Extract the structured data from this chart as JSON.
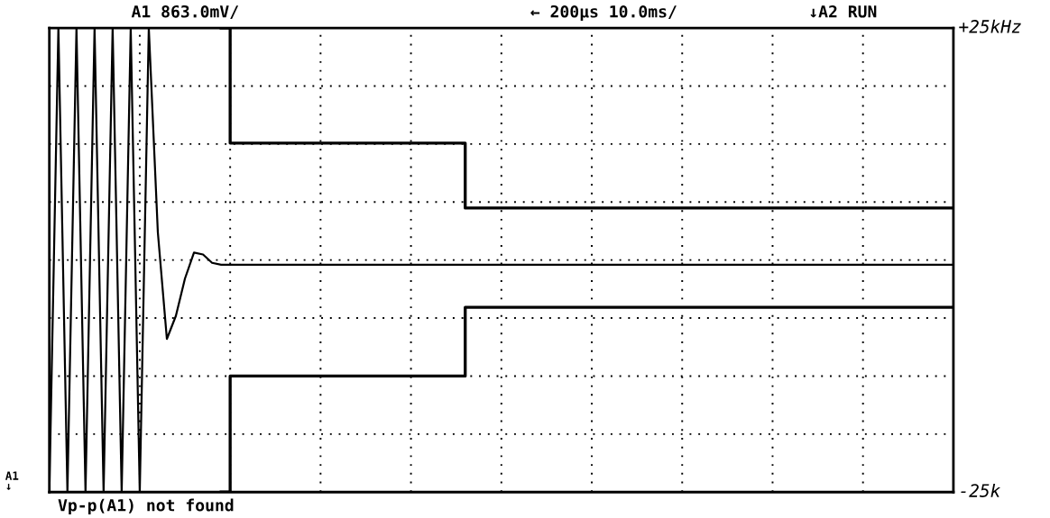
{
  "chart_data": {
    "type": "line",
    "categories": [
      null,
      null,
      null,
      null,
      null,
      null,
      null,
      null,
      null,
      null,
      null,
      null,
      null,
      null,
      null,
      null,
      null,
      null,
      null,
      null,
      null,
      null,
      null,
      null,
      null,
      null,
      null,
      null,
      null,
      null,
      null,
      null,
      null,
      null,
      null,
      null,
      null,
      null,
      null,
      null,
      null,
      null,
      null,
      null,
      null,
      null,
      null,
      null,
      null,
      null,
      null,
      null,
      null,
      null,
      null,
      null,
      null,
      null,
      null,
      null,
      null,
      null,
      null,
      null,
      null,
      null,
      null,
      null,
      null,
      null,
      null,
      null,
      null,
      null,
      null,
      null,
      null,
      null,
      null,
      null,
      null,
      null,
      null,
      null,
      null,
      null,
      null,
      null,
      null,
      null,
      null,
      null,
      null,
      null,
      null,
      null,
      null,
      null,
      null,
      null,
      null
    ],
    "series": [
      {
        "color": "#000000",
        "values": [
          -25,
          25,
          -25,
          25,
          -25,
          25,
          -25,
          25,
          -25,
          25,
          -25,
          25,
          3,
          -8.5,
          -6,
          -2,
          0.8,
          0.6,
          -0.3,
          -0.5,
          -0.5,
          -0.5,
          -0.5,
          -0.5,
          -0.5,
          -0.5,
          -0.5,
          -0.5,
          -0.5,
          -0.5,
          -0.5,
          -0.5,
          -0.5,
          -0.5,
          -0.5,
          -0.5,
          -0.5,
          -0.5,
          -0.5,
          -0.5,
          -0.5,
          -0.5,
          -0.5,
          -0.5,
          -0.5,
          -0.5,
          -0.5,
          -0.5,
          -0.5,
          -0.5,
          -0.5,
          -0.5,
          -0.5,
          -0.5,
          -0.5,
          -0.5,
          -0.5,
          -0.5,
          -0.5,
          -0.5,
          -0.5,
          -0.5,
          -0.5,
          -0.5,
          -0.5,
          -0.5,
          -0.5,
          -0.5,
          -0.5,
          -0.5,
          -0.5,
          -0.5,
          -0.5,
          -0.5,
          -0.5,
          -0.5,
          -0.5,
          -0.5,
          -0.5,
          -0.5,
          -0.5,
          -0.5,
          -0.5,
          -0.5,
          -0.5,
          -0.5,
          -0.5,
          -0.5,
          -0.5,
          -0.5,
          -0.5,
          -0.5,
          -0.5,
          -0.5,
          -0.5,
          -0.5,
          -0.5,
          -0.5,
          -0.5,
          -0.5,
          -0.5
        ]
      },
      {
        "type": "step",
        "color": "#000000",
        "values": [
          null,
          null,
          null,
          null,
          null,
          null,
          null,
          null,
          null,
          null,
          null,
          null,
          null,
          null,
          null,
          null,
          null,
          null,
          null,
          25,
          12.6,
          12.6,
          12.6,
          12.6,
          12.6,
          12.6,
          12.6,
          12.6,
          12.6,
          12.6,
          12.6,
          12.6,
          12.6,
          12.6,
          12.6,
          12.6,
          12.6,
          12.6,
          12.6,
          12.6,
          12.6,
          12.6,
          12.6,
          12.6,
          12.6,
          12.6,
          5.6,
          5.6,
          5.6,
          5.6,
          5.6,
          5.6,
          5.6,
          5.6,
          5.6,
          5.6,
          5.6,
          5.6,
          5.6,
          5.6,
          5.6,
          5.6,
          5.6,
          5.6,
          5.6,
          5.6,
          5.6,
          5.6,
          5.6,
          5.6,
          5.6,
          5.6,
          5.6,
          5.6,
          5.6,
          5.6,
          5.6,
          5.6,
          5.6,
          5.6,
          5.6,
          5.6,
          5.6,
          5.6,
          5.6,
          5.6,
          5.6,
          5.6,
          5.6,
          5.6,
          5.6,
          5.6,
          5.6,
          5.6,
          5.6,
          5.6,
          5.6,
          5.6,
          5.6,
          5.6,
          5.6
        ]
      },
      {
        "type": "step",
        "color": "#000000",
        "values": [
          null,
          null,
          null,
          null,
          null,
          null,
          null,
          null,
          null,
          null,
          null,
          null,
          null,
          null,
          null,
          null,
          null,
          null,
          null,
          -25,
          -12.5,
          -12.5,
          -12.5,
          -12.5,
          -12.5,
          -12.5,
          -12.5,
          -12.5,
          -12.5,
          -12.5,
          -12.5,
          -12.5,
          -12.5,
          -12.5,
          -12.5,
          -12.5,
          -12.5,
          -12.5,
          -12.5,
          -12.5,
          -12.5,
          -12.5,
          -12.5,
          -12.5,
          -12.5,
          -12.5,
          -5.1,
          -5.1,
          -5.1,
          -5.1,
          -5.1,
          -5.1,
          -5.1,
          -5.1,
          -5.1,
          -5.1,
          -5.1,
          -5.1,
          -5.1,
          -5.1,
          -5.1,
          -5.1,
          -5.1,
          -5.1,
          -5.1,
          -5.1,
          -5.1,
          -5.1,
          -5.1,
          -5.1,
          -5.1,
          -5.1,
          -5.1,
          -5.1,
          -5.1,
          -5.1,
          -5.1,
          -5.1,
          -5.1,
          -5.1,
          -5.1,
          -5.1,
          -5.1,
          -5.1,
          -5.1,
          -5.1,
          -5.1,
          -5.1,
          -5.1,
          -5.1,
          -5.1,
          -5.1,
          -5.1,
          -5.1,
          -5.1,
          -5.1,
          -5.1,
          -5.1,
          -5.1,
          -5.1,
          -5.1
        ]
      }
    ],
    "ylim": [
      -25,
      25
    ],
    "yticks": [
      {
        "value": -25,
        "label": "-25k"
      },
      {
        "value": 25,
        "label": "+25kHz"
      }
    ],
    "tick_labels": "y",
    "grid": true,
    "annotations": [
      "A1 863.0mV/",
      "← 200µs 10.0ms/",
      "↓A2 RUN",
      "Vp-p(A1) not found",
      "A1\n↓"
    ]
  }
}
